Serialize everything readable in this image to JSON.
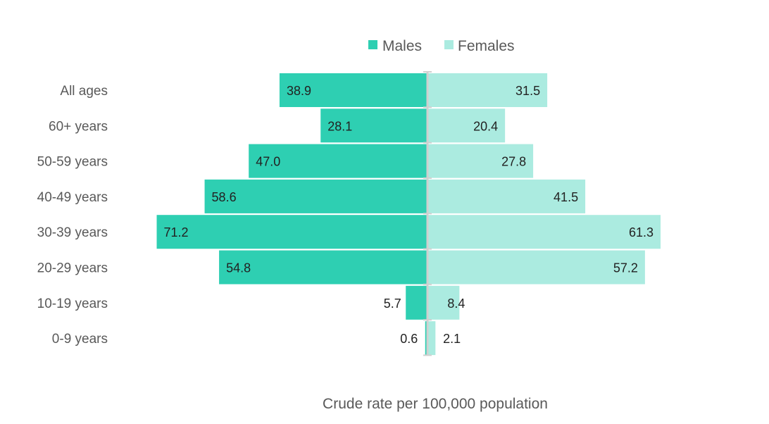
{
  "chart_data": {
    "type": "bar",
    "orientation": "horizontal-butterfly",
    "title": "",
    "xlabel": "Crude rate per 100,000 population",
    "ylabel": "",
    "categories": [
      "All ages",
      "60+ years",
      "50-59 years",
      "40-49 years",
      "30-39 years",
      "20-29 years",
      "10-19 years",
      "0-9 years"
    ],
    "series": [
      {
        "name": "Males",
        "color": "#2ECFB2",
        "values": [
          38.9,
          28.1,
          47.0,
          58.6,
          71.2,
          54.8,
          5.7,
          0.6
        ]
      },
      {
        "name": "Females",
        "color": "#ABEBE0",
        "values": [
          31.5,
          20.4,
          27.8,
          41.5,
          61.3,
          57.2,
          8.4,
          2.1
        ]
      }
    ],
    "legend_position": "top-center",
    "grid": false
  }
}
